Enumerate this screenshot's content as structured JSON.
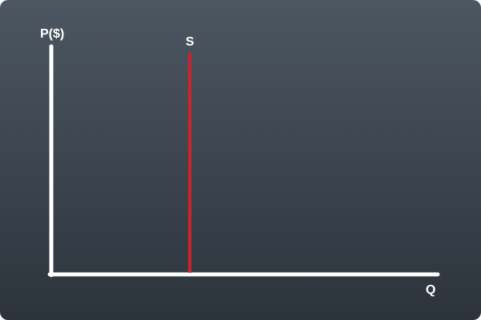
{
  "chart_data": {
    "type": "line",
    "title": "",
    "xlabel": "Q",
    "ylabel": "P($)",
    "series": [
      {
        "name": "S",
        "shape": "vertical",
        "x": [
          0.36,
          0.36
        ],
        "y": [
          0,
          1
        ],
        "color": "#d0232c"
      }
    ],
    "xlim": [
      0,
      1
    ],
    "ylim": [
      0,
      1
    ],
    "tick_labels": false,
    "grid": false,
    "legend": "none",
    "axis_color": "#ffffff",
    "background_colors": [
      "#4c5661",
      "#2c333b"
    ]
  }
}
